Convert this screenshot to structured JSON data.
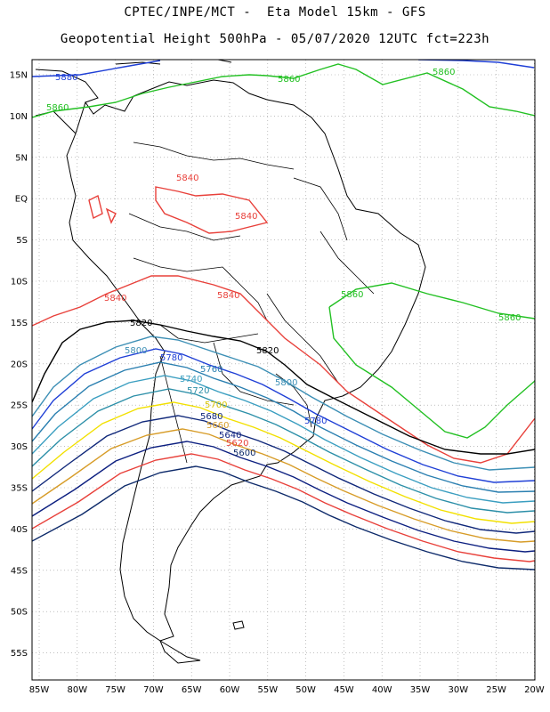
{
  "header": {
    "line1": "CPTEC/INPE/MCT -  Eta Model 15km - GFS",
    "line2": "Geopotential Height 500hPa - 05/07/2020 12UTC fct=223h"
  },
  "axes": {
    "lat_labels": [
      "15N",
      "10N",
      "5N",
      "EQ",
      "5S",
      "10S",
      "15S",
      "20S",
      "25S",
      "30S",
      "35S",
      "40S",
      "45S",
      "50S",
      "55S"
    ],
    "lon_labels": [
      "85W",
      "80W",
      "75W",
      "70W",
      "65W",
      "60W",
      "55W",
      "50W",
      "45W",
      "40W",
      "35W",
      "30W",
      "25W",
      "20W"
    ],
    "grid": "dotted"
  },
  "contours": [
    {
      "level": "5880",
      "color": "#1f3fd6"
    },
    {
      "level": "5860",
      "color": "#22c022"
    },
    {
      "level": "5840",
      "color": "#e8403a"
    },
    {
      "level": "5820",
      "color": "#000000"
    },
    {
      "level": "5800",
      "color": "#3c8fb5"
    },
    {
      "level": "5780",
      "color": "#1f3fd6"
    },
    {
      "level": "5760",
      "color": "#2a7fb0"
    },
    {
      "level": "5740",
      "color": "#3a9ec0"
    },
    {
      "level": "5720",
      "color": "#2c8fa8"
    },
    {
      "level": "5700",
      "color": "#f2e000"
    },
    {
      "level": "5680",
      "color": "#10287a"
    },
    {
      "level": "5660",
      "color": "#d79c28"
    },
    {
      "level": "5640",
      "color": "#0c1f80"
    },
    {
      "level": "5620",
      "color": "#e8403a"
    },
    {
      "level": "5600",
      "color": "#0d2a6a"
    }
  ],
  "labels": {
    "5880": "5880",
    "5860": "5860",
    "5840": "5840",
    "5820": "5820",
    "5800": "5800",
    "5780": "5780",
    "5760": "5760",
    "5740": "5740",
    "5720": "5720",
    "5700": "5700",
    "5680": "5680",
    "5660": "5660",
    "5640": "5640",
    "5620": "5620",
    "5600": "5600"
  }
}
